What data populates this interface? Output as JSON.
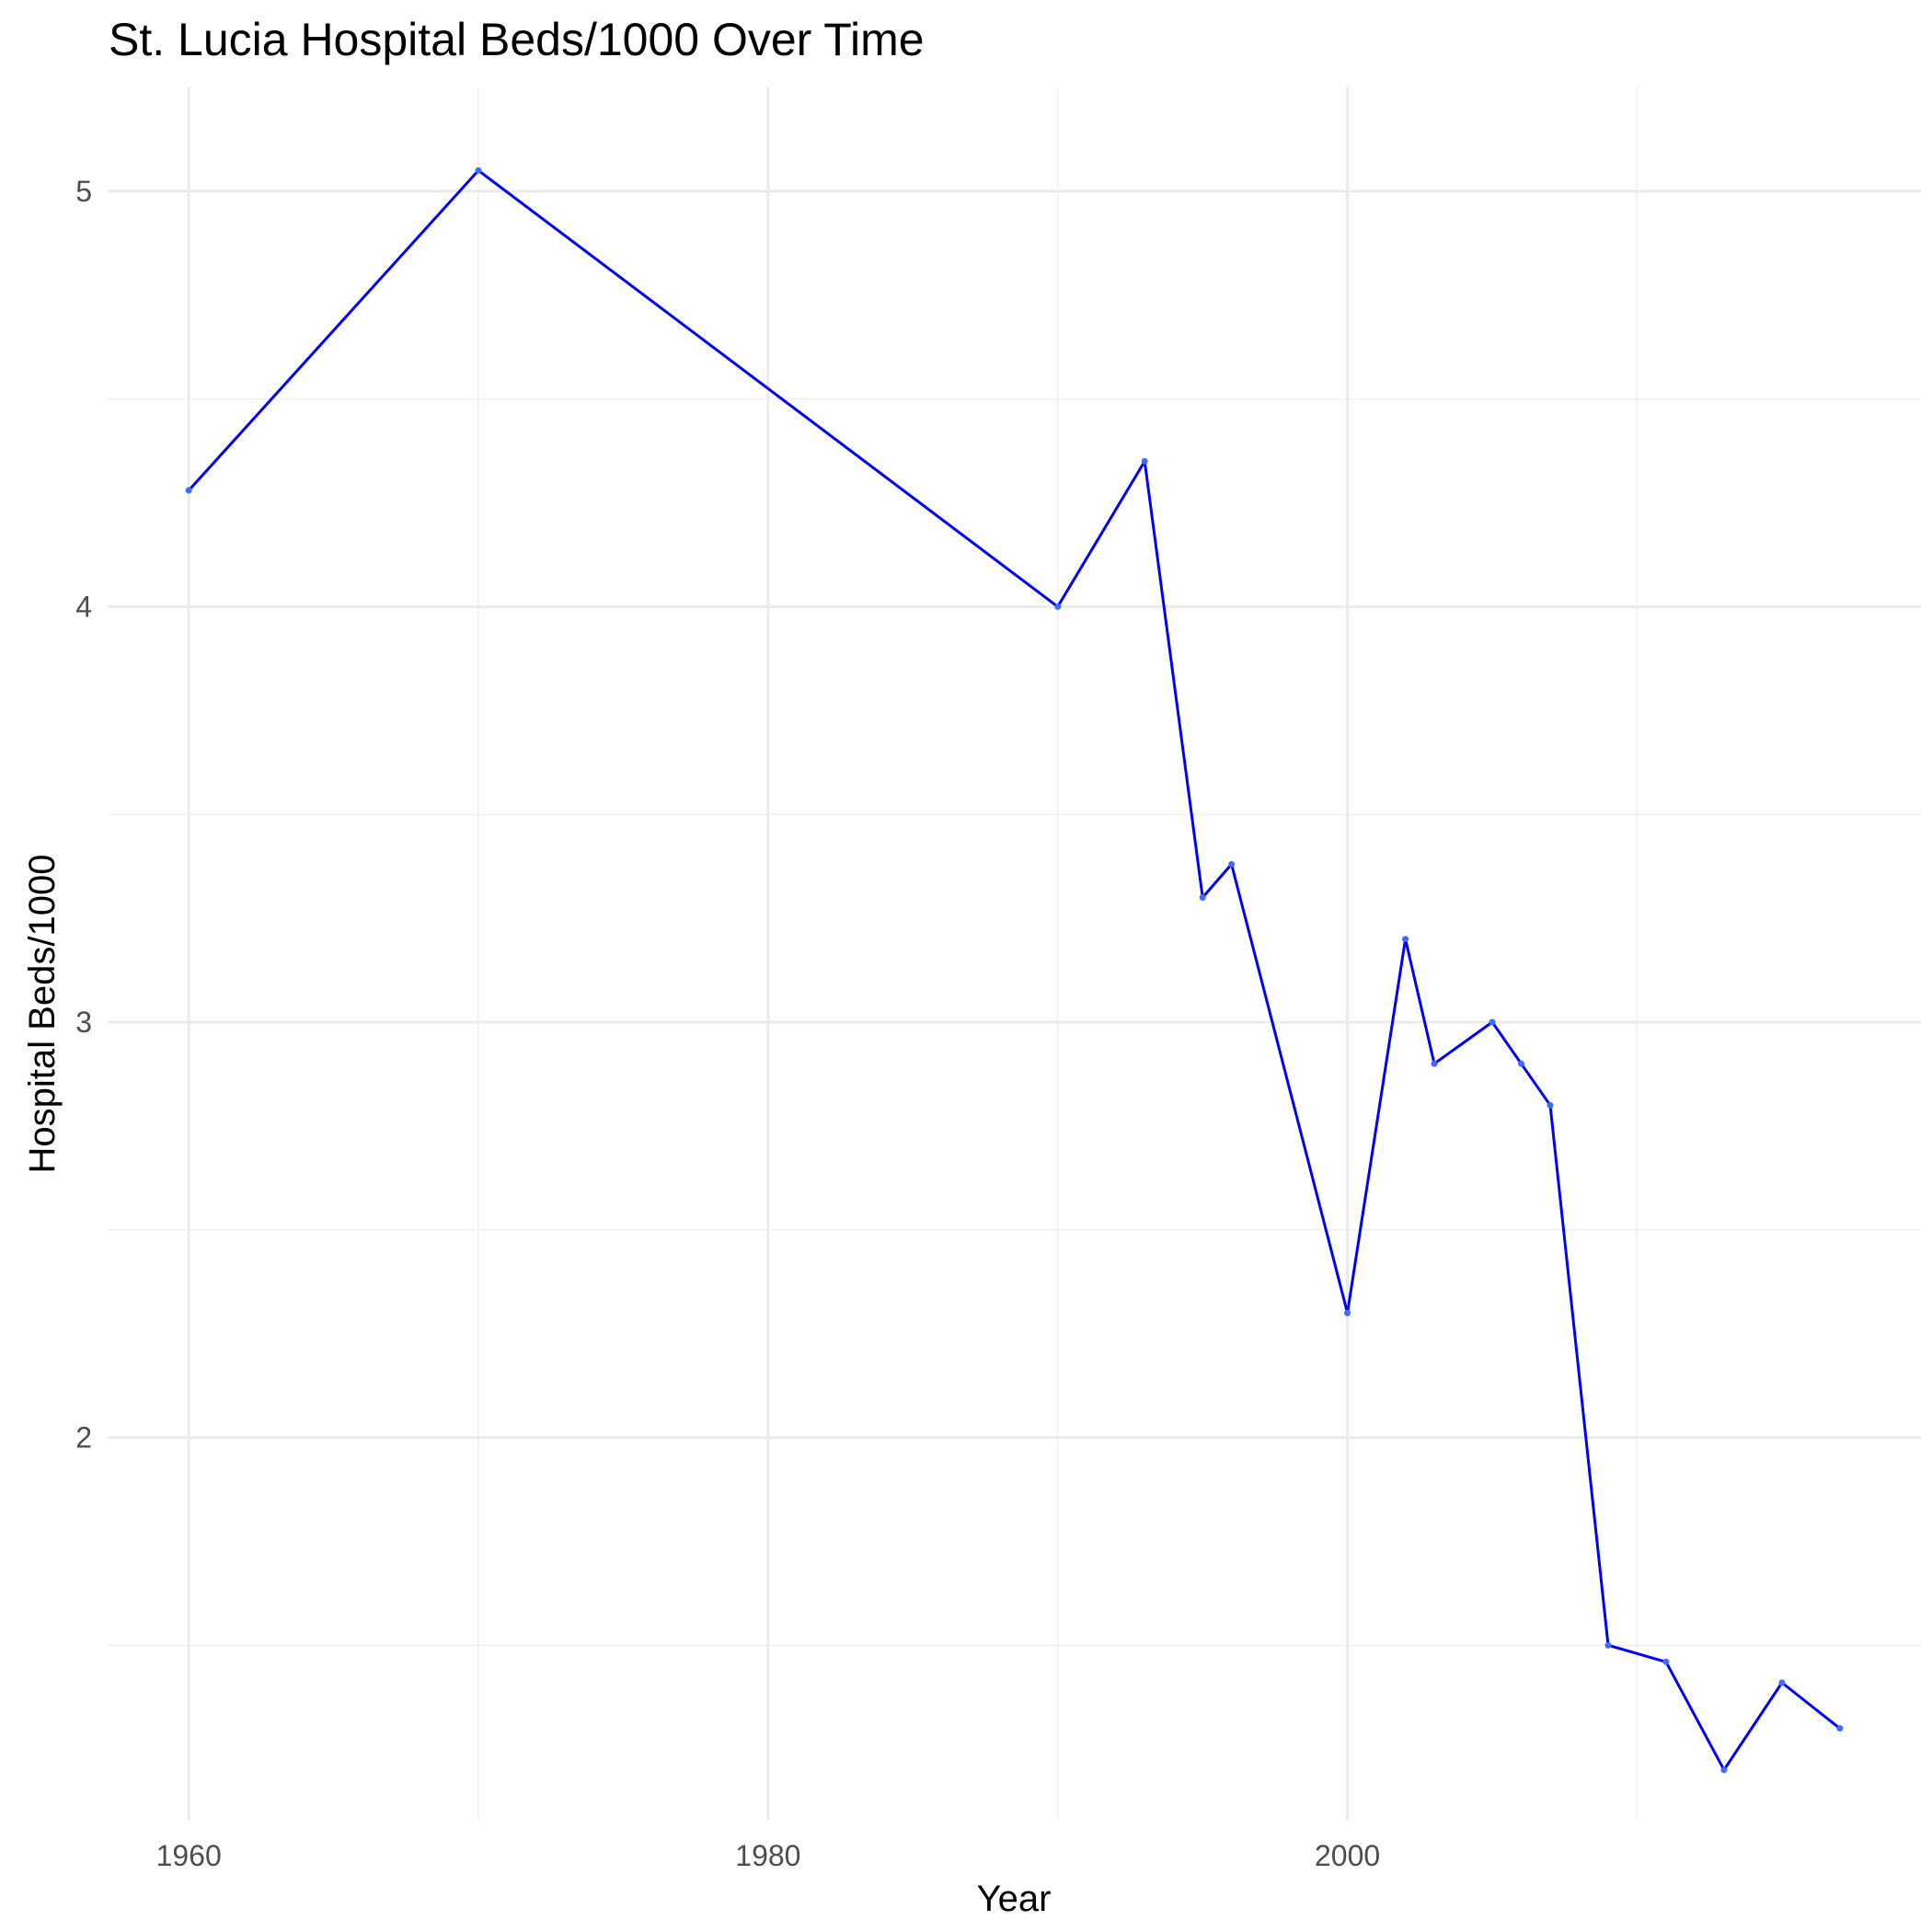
{
  "chart_data": {
    "type": "line",
    "title": "St. Lucia Hospital Beds/1000 Over Time",
    "xlabel": "Year",
    "ylabel": "Hospital Beds/1000",
    "xlim": [
      1957.2,
      2019.8
    ],
    "ylim": [
      1.08,
      5.25
    ],
    "x_ticks": [
      1960,
      1980,
      2000
    ],
    "x_minor_ticks": [
      1970,
      1990,
      2010
    ],
    "y_ticks": [
      2,
      3,
      4,
      5
    ],
    "y_minor_ticks": [
      1.5,
      2.5,
      3.5,
      4.5
    ],
    "grid": true,
    "legend": "none",
    "line_color": "#0000ff",
    "series": [
      {
        "x": [
          1960,
          1970,
          1990,
          1993,
          1995,
          1996,
          2000,
          2002,
          2003,
          2005,
          2006,
          2007,
          2009,
          2011,
          2013,
          2015,
          2017
        ],
        "values": [
          4.28,
          5.05,
          4.0,
          4.35,
          3.3,
          3.38,
          2.3,
          3.2,
          2.9,
          3.0,
          2.9,
          2.8,
          1.5,
          1.46,
          1.2,
          1.41,
          1.3
        ]
      }
    ]
  }
}
